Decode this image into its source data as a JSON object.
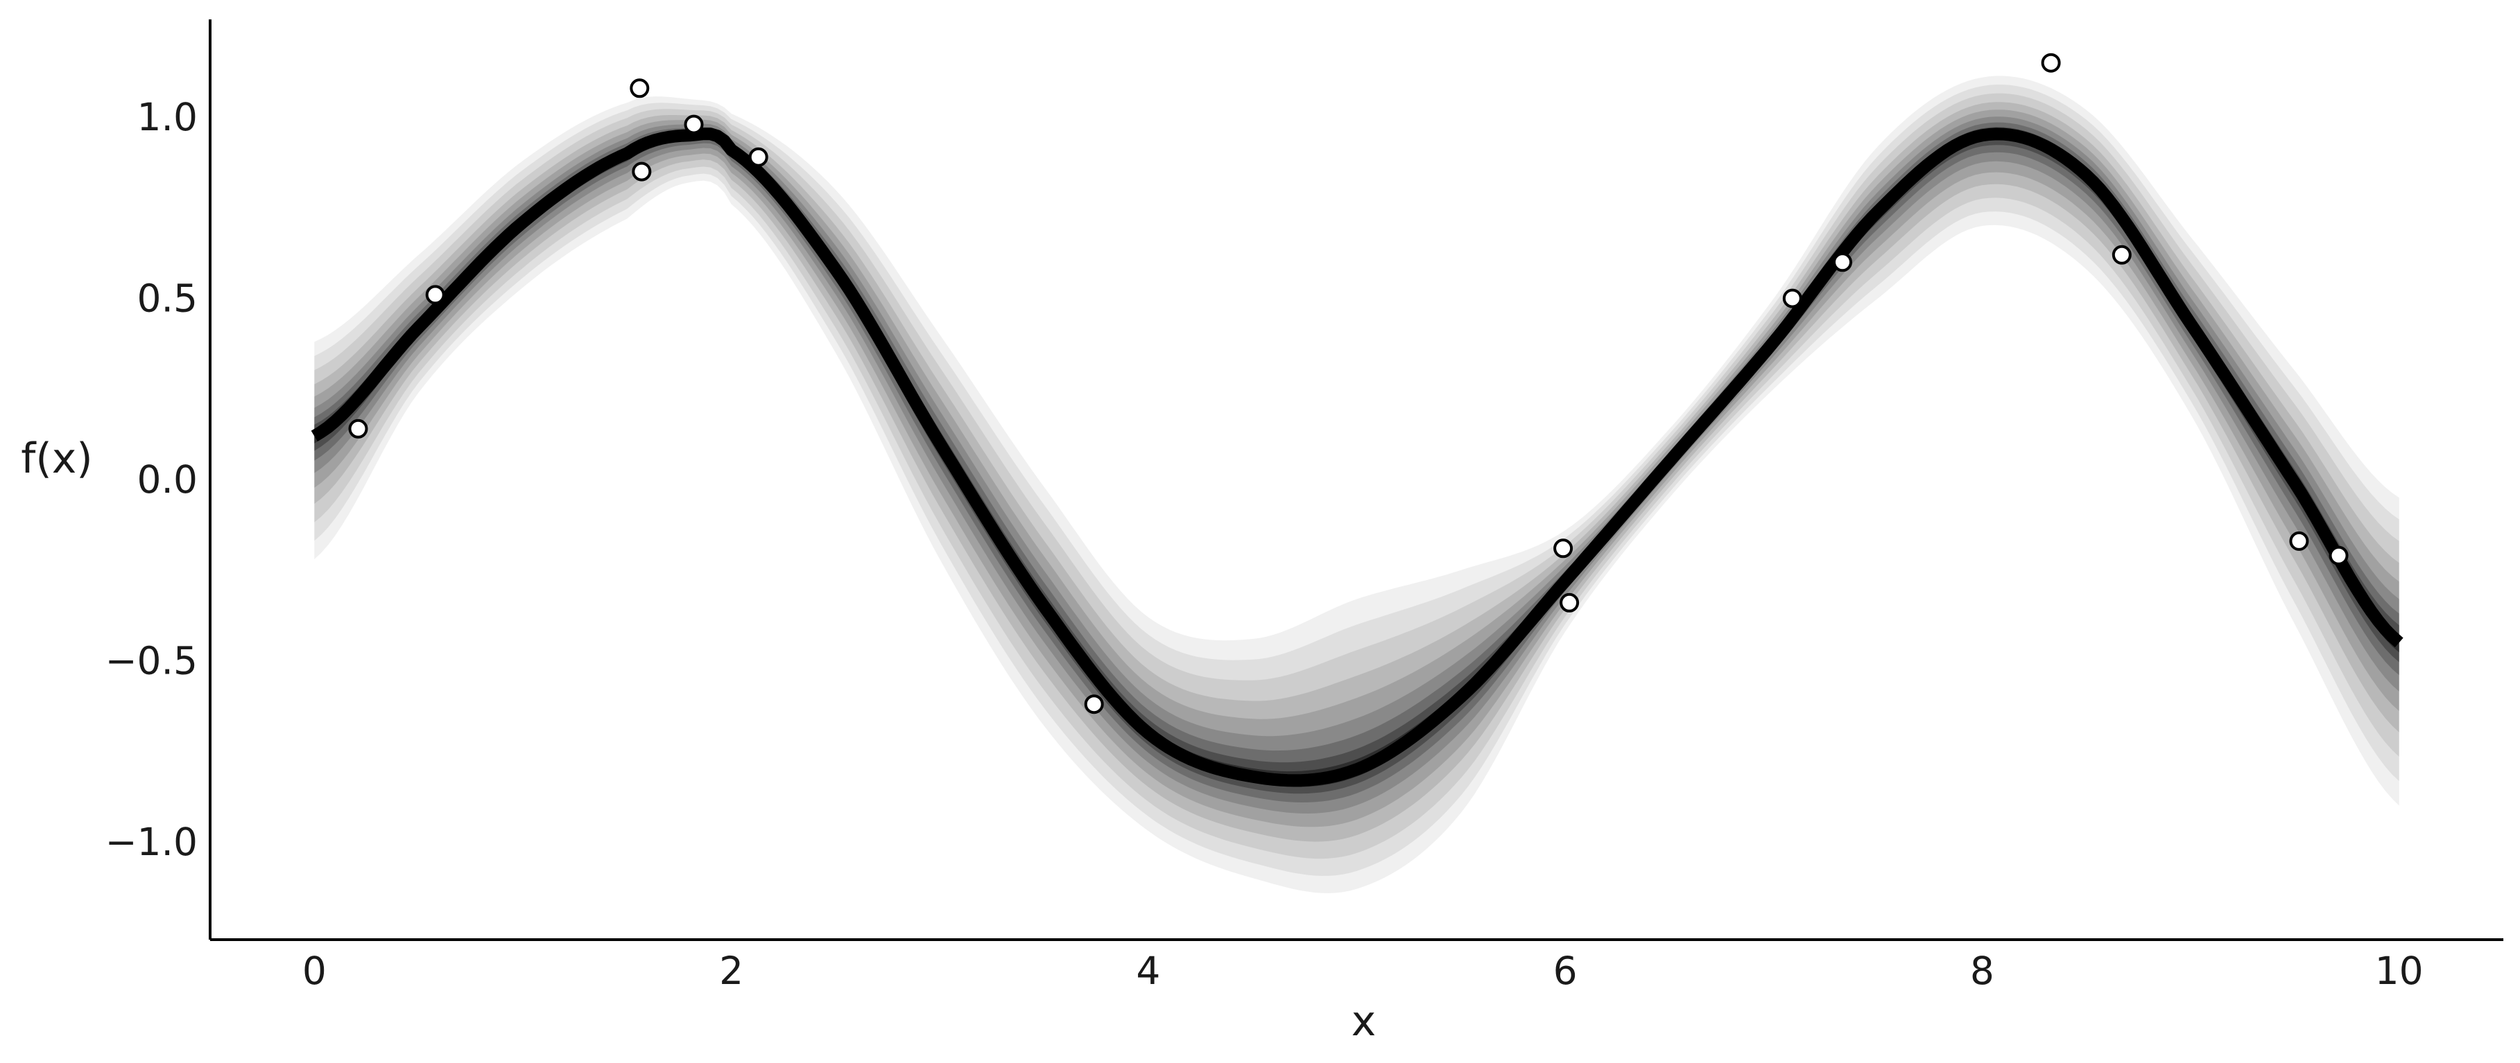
{
  "chart_data": {
    "type": "line",
    "title": "",
    "xlabel": "x",
    "ylabel": "f(x)",
    "xlim": [
      -0.5,
      10.5
    ],
    "ylim": [
      -1.27,
      1.27
    ],
    "xticks": [
      0,
      2,
      4,
      6,
      8,
      10
    ],
    "xtick_labels": [
      "0",
      "2",
      "4",
      "6",
      "8",
      "10"
    ],
    "yticks": [
      -1.0,
      -0.5,
      0.0,
      0.5,
      1.0
    ],
    "ytick_labels": [
      "−1.0",
      "−0.5",
      "0.0",
      "0.5",
      "1.0"
    ],
    "grid": false,
    "legend": "none",
    "series": [
      {
        "kind": "posterior_mean_line",
        "color": "#000000",
        "x": [
          0,
          0.5,
          1.0,
          1.5,
          1.8,
          2.0,
          2.5,
          3.0,
          3.5,
          4.0,
          4.5,
          5.0,
          5.5,
          6.0,
          6.5,
          7.0,
          7.5,
          8.0,
          8.5,
          9.0,
          9.5,
          10.0
        ],
        "y": [
          0.12,
          0.42,
          0.71,
          0.9,
          0.95,
          0.91,
          0.58,
          0.1,
          -0.35,
          -0.7,
          -0.82,
          -0.8,
          -0.6,
          -0.28,
          0.05,
          0.38,
          0.74,
          0.95,
          0.84,
          0.43,
          -0.01,
          -0.45
        ]
      },
      {
        "kind": "posterior_band",
        "color": "#000000",
        "x": [
          0,
          0.5,
          1.0,
          1.5,
          1.8,
          2.0,
          2.5,
          3.0,
          3.5,
          4.0,
          4.5,
          5.0,
          5.5,
          6.0,
          6.5,
          7.0,
          7.5,
          8.0,
          8.5,
          9.0,
          9.5,
          10.0
        ],
        "upper": [
          0.38,
          0.62,
          0.88,
          1.04,
          1.05,
          1.01,
          0.8,
          0.4,
          -0.02,
          -0.38,
          -0.44,
          -0.33,
          -0.25,
          -0.14,
          0.14,
          0.5,
          0.92,
          1.11,
          1.02,
          0.67,
          0.3,
          -0.05
        ],
        "lower": [
          -0.22,
          0.24,
          0.53,
          0.72,
          0.82,
          0.76,
          0.35,
          -0.22,
          -0.68,
          -0.97,
          -1.1,
          -1.13,
          -0.92,
          -0.42,
          -0.05,
          0.25,
          0.5,
          0.7,
          0.58,
          0.18,
          -0.4,
          -0.9
        ]
      },
      {
        "kind": "observations",
        "marker": "o",
        "facecolor": "#ffffff",
        "edgecolor": "#000000",
        "x": [
          0.21,
          0.58,
          1.56,
          1.57,
          1.82,
          2.13,
          3.74,
          5.99,
          6.02,
          7.09,
          7.33,
          8.33,
          8.67,
          9.52,
          9.71
        ],
        "y": [
          0.14,
          0.51,
          1.08,
          0.85,
          0.98,
          0.89,
          -0.62,
          -0.19,
          -0.34,
          0.5,
          0.6,
          1.15,
          0.62,
          -0.17,
          -0.21
        ]
      }
    ]
  }
}
